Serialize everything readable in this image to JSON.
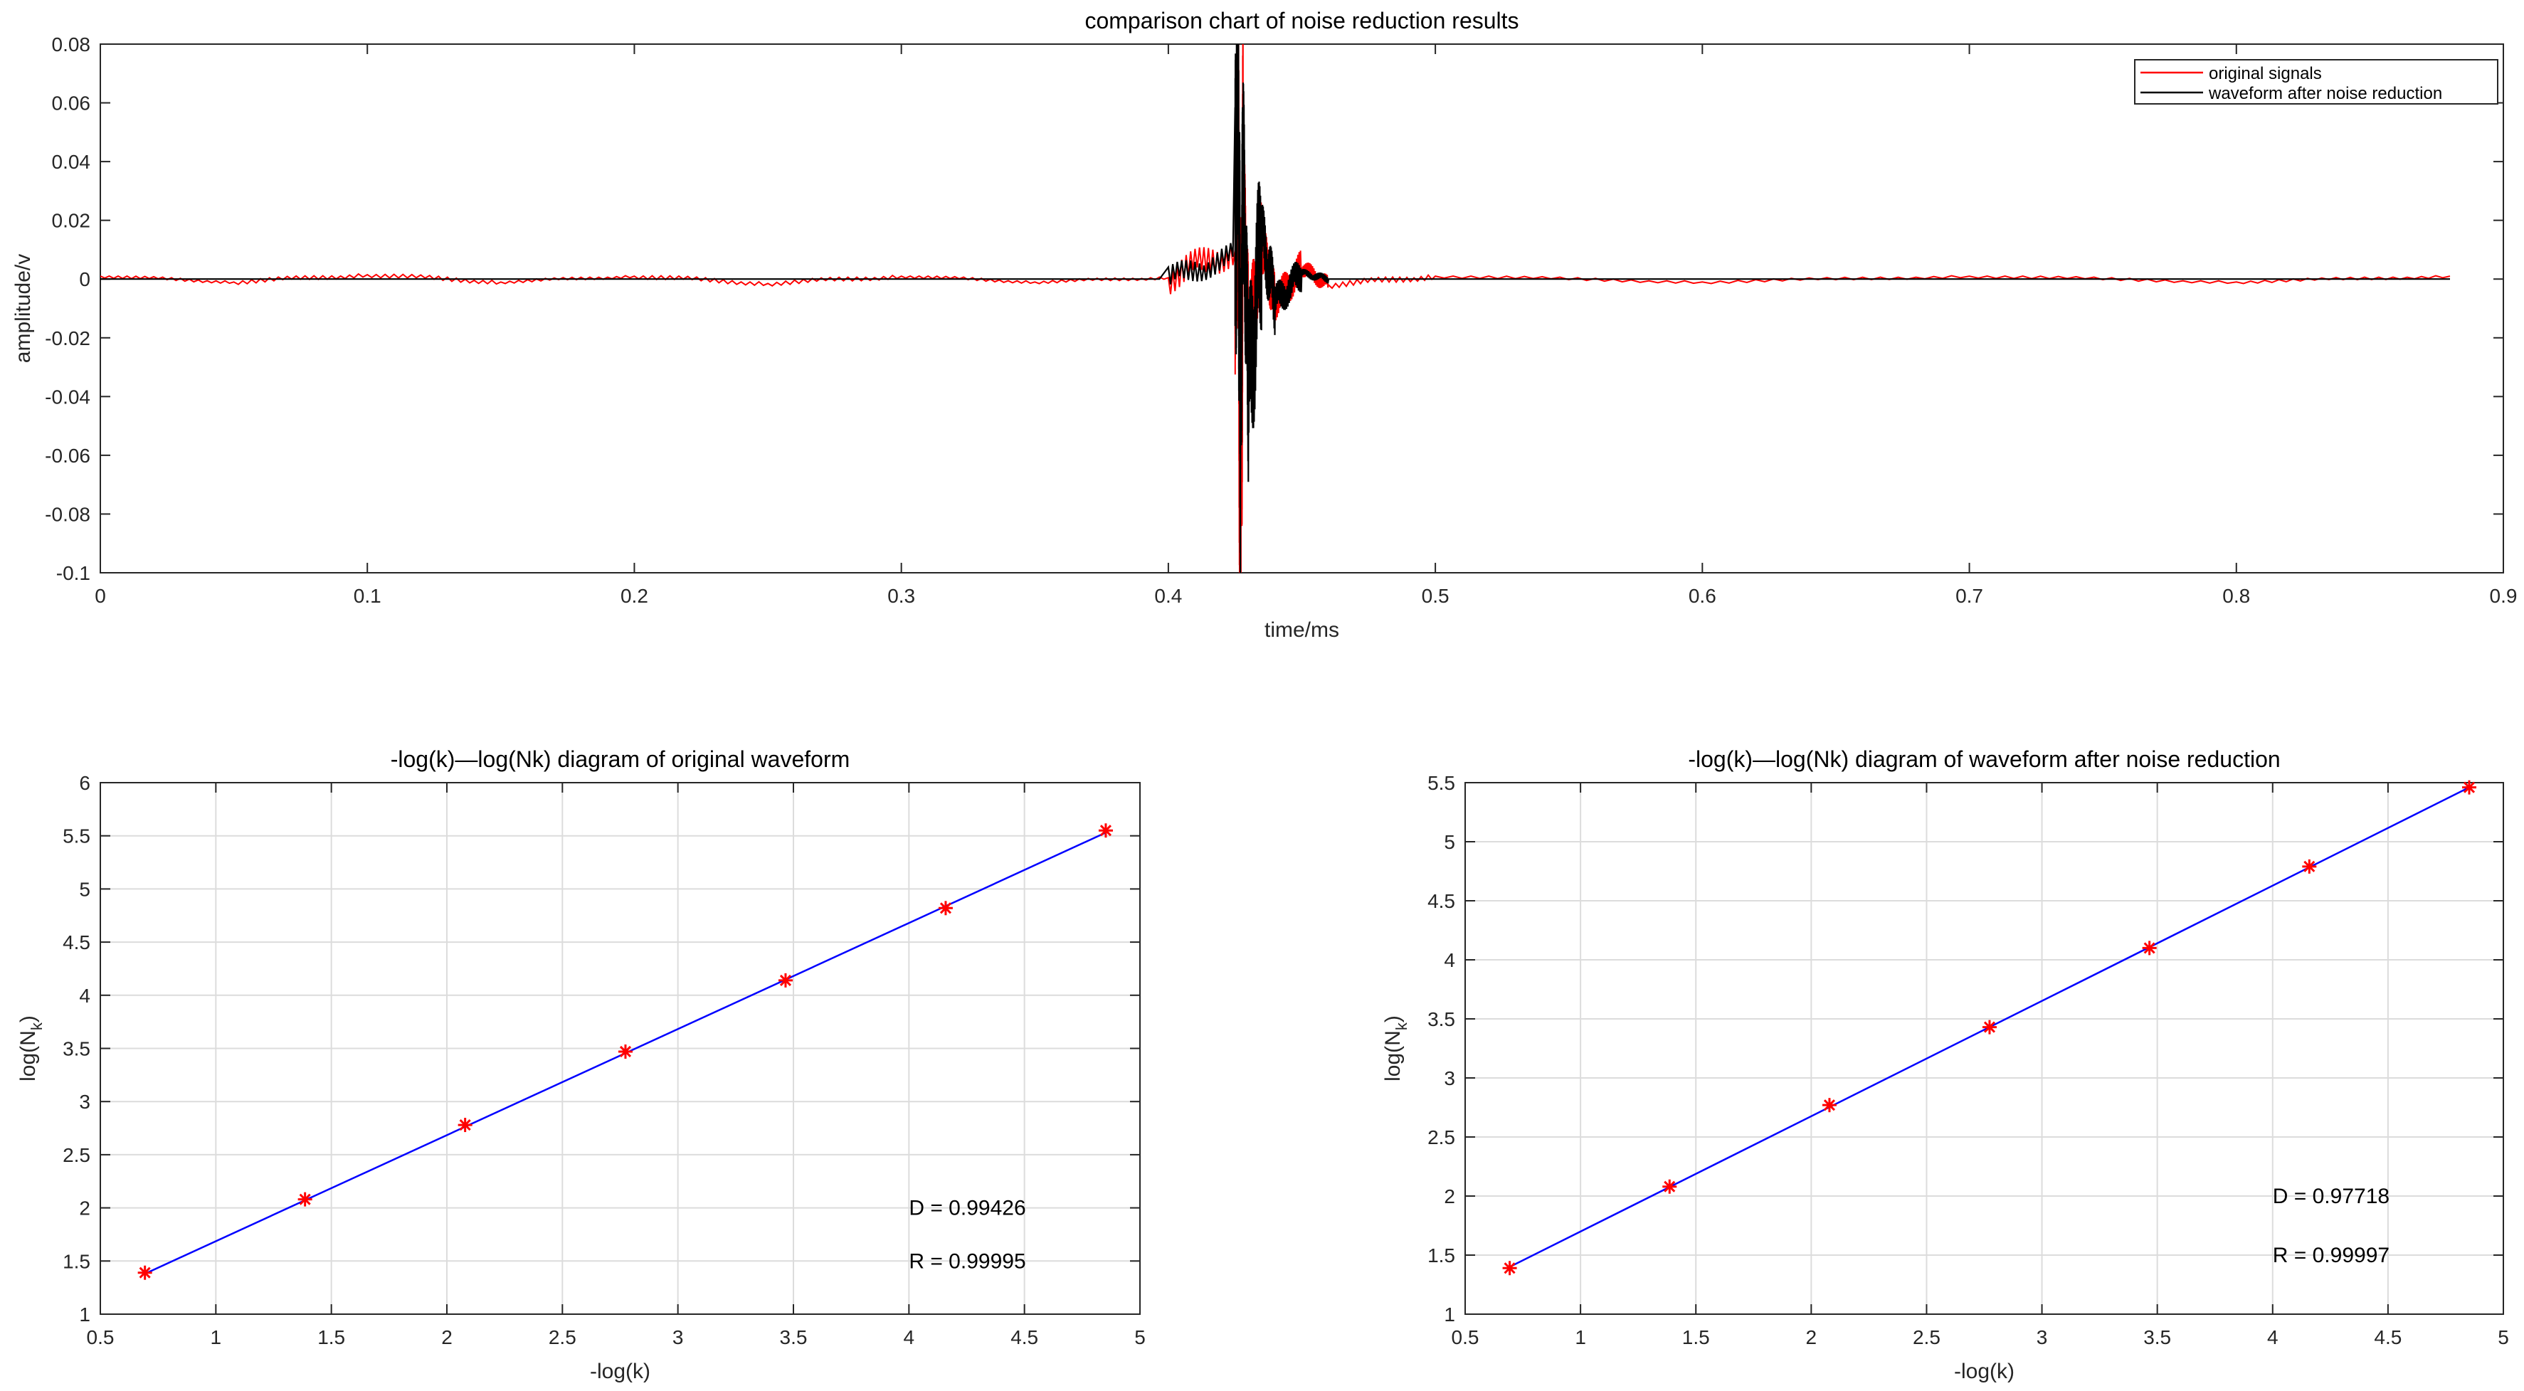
{
  "chart_data": [
    {
      "id": "top",
      "type": "line",
      "title": "comparison chart of noise reduction results",
      "xlabel": "time/ms",
      "ylabel": "amplitude/v",
      "xlim": [
        0,
        0.9
      ],
      "ylim": [
        -0.1,
        0.08
      ],
      "xticks": [
        0,
        0.1,
        0.2,
        0.3,
        0.4,
        0.5,
        0.6,
        0.7,
        0.8,
        0.9
      ],
      "yticks": [
        -0.1,
        -0.08,
        -0.06,
        -0.04,
        -0.02,
        0,
        0.02,
        0.04,
        0.06,
        0.08
      ],
      "grid": false,
      "legend_position": "top-right",
      "series": [
        {
          "name": "original signals",
          "color": "#ff0000",
          "x": [
            0,
            0.05,
            0.1,
            0.15,
            0.2,
            0.25,
            0.3,
            0.35,
            0.4,
            0.425,
            0.426,
            0.427,
            0.428,
            0.43,
            0.435,
            0.44,
            0.45,
            0.46,
            0.5,
            0.6,
            0.7,
            0.8,
            0.88
          ],
          "y": [
            0.001,
            -0.001,
            0.0015,
            -0.001,
            0.001,
            -0.0015,
            0.001,
            -0.001,
            0.0005,
            0.01,
            0.055,
            -0.083,
            0.03,
            -0.02,
            0.012,
            -0.008,
            0.004,
            -0.002,
            0.001,
            -0.001,
            0.001,
            -0.001,
            0.001
          ]
        },
        {
          "name": "waveform after noise reduction",
          "color": "#000000",
          "x": [
            0,
            0.1,
            0.2,
            0.3,
            0.4,
            0.425,
            0.426,
            0.427,
            0.428,
            0.43,
            0.435,
            0.44,
            0.45,
            0.46,
            0.5,
            0.6,
            0.7,
            0.8,
            0.88
          ],
          "y": [
            0,
            0,
            0,
            0,
            0,
            0.008,
            0.075,
            -0.05,
            0.04,
            -0.04,
            0.015,
            -0.008,
            0.002,
            0,
            0,
            0,
            0,
            0,
            0
          ]
        }
      ]
    },
    {
      "id": "bottom-left",
      "type": "scatter",
      "title": "-log(k)—log(Nk) diagram of original waveform",
      "xlabel": "-log(k)",
      "ylabel_main": "log(N",
      "ylabel_sub": "k",
      "ylabel_close": ")",
      "xlim": [
        0.5,
        5
      ],
      "ylim": [
        1,
        6
      ],
      "xticks": [
        0.5,
        1,
        1.5,
        2,
        2.5,
        3,
        3.5,
        4,
        4.5,
        5
      ],
      "yticks": [
        1,
        1.5,
        2,
        2.5,
        3,
        3.5,
        4,
        4.5,
        5,
        5.5,
        6
      ],
      "grid": true,
      "points": [
        {
          "x": 0.693,
          "y": 1.39
        },
        {
          "x": 1.386,
          "y": 2.08
        },
        {
          "x": 2.079,
          "y": 2.78
        },
        {
          "x": 2.773,
          "y": 3.47
        },
        {
          "x": 3.466,
          "y": 4.14
        },
        {
          "x": 4.159,
          "y": 4.82
        },
        {
          "x": 4.852,
          "y": 5.55
        }
      ],
      "fit_line": {
        "x": [
          0.693,
          4.852
        ],
        "y": [
          1.38,
          5.53
        ]
      },
      "annotations": [
        {
          "text": "D = 0.99426",
          "x": 4.0,
          "y": 2.0
        },
        {
          "text": "R = 0.99995",
          "x": 4.0,
          "y": 1.5
        }
      ],
      "point_color": "#ff0000",
      "line_color": "#0000ff"
    },
    {
      "id": "bottom-right",
      "type": "scatter",
      "title": "-log(k)—log(Nk) diagram of waveform after noise reduction",
      "xlabel": "-log(k)",
      "ylabel_main": "log(N",
      "ylabel_sub": "k",
      "ylabel_close": ")",
      "xlim": [
        0.5,
        5
      ],
      "ylim": [
        1,
        5.5
      ],
      "xticks": [
        0.5,
        1,
        1.5,
        2,
        2.5,
        3,
        3.5,
        4,
        4.5,
        5
      ],
      "yticks": [
        1,
        1.5,
        2,
        2.5,
        3,
        3.5,
        4,
        4.5,
        5,
        5.5
      ],
      "grid": true,
      "points": [
        {
          "x": 0.693,
          "y": 1.39
        },
        {
          "x": 1.386,
          "y": 2.08
        },
        {
          "x": 2.079,
          "y": 2.77
        },
        {
          "x": 2.773,
          "y": 3.43
        },
        {
          "x": 3.466,
          "y": 4.1
        },
        {
          "x": 4.159,
          "y": 4.79
        },
        {
          "x": 4.852,
          "y": 5.46
        }
      ],
      "fit_line": {
        "x": [
          0.693,
          4.852
        ],
        "y": [
          1.4,
          5.46
        ]
      },
      "annotations": [
        {
          "text": "D = 0.97718",
          "x": 4.0,
          "y": 2.0
        },
        {
          "text": "R = 0.99997",
          "x": 4.0,
          "y": 1.5
        }
      ],
      "point_color": "#ff0000",
      "line_color": "#0000ff"
    }
  ]
}
